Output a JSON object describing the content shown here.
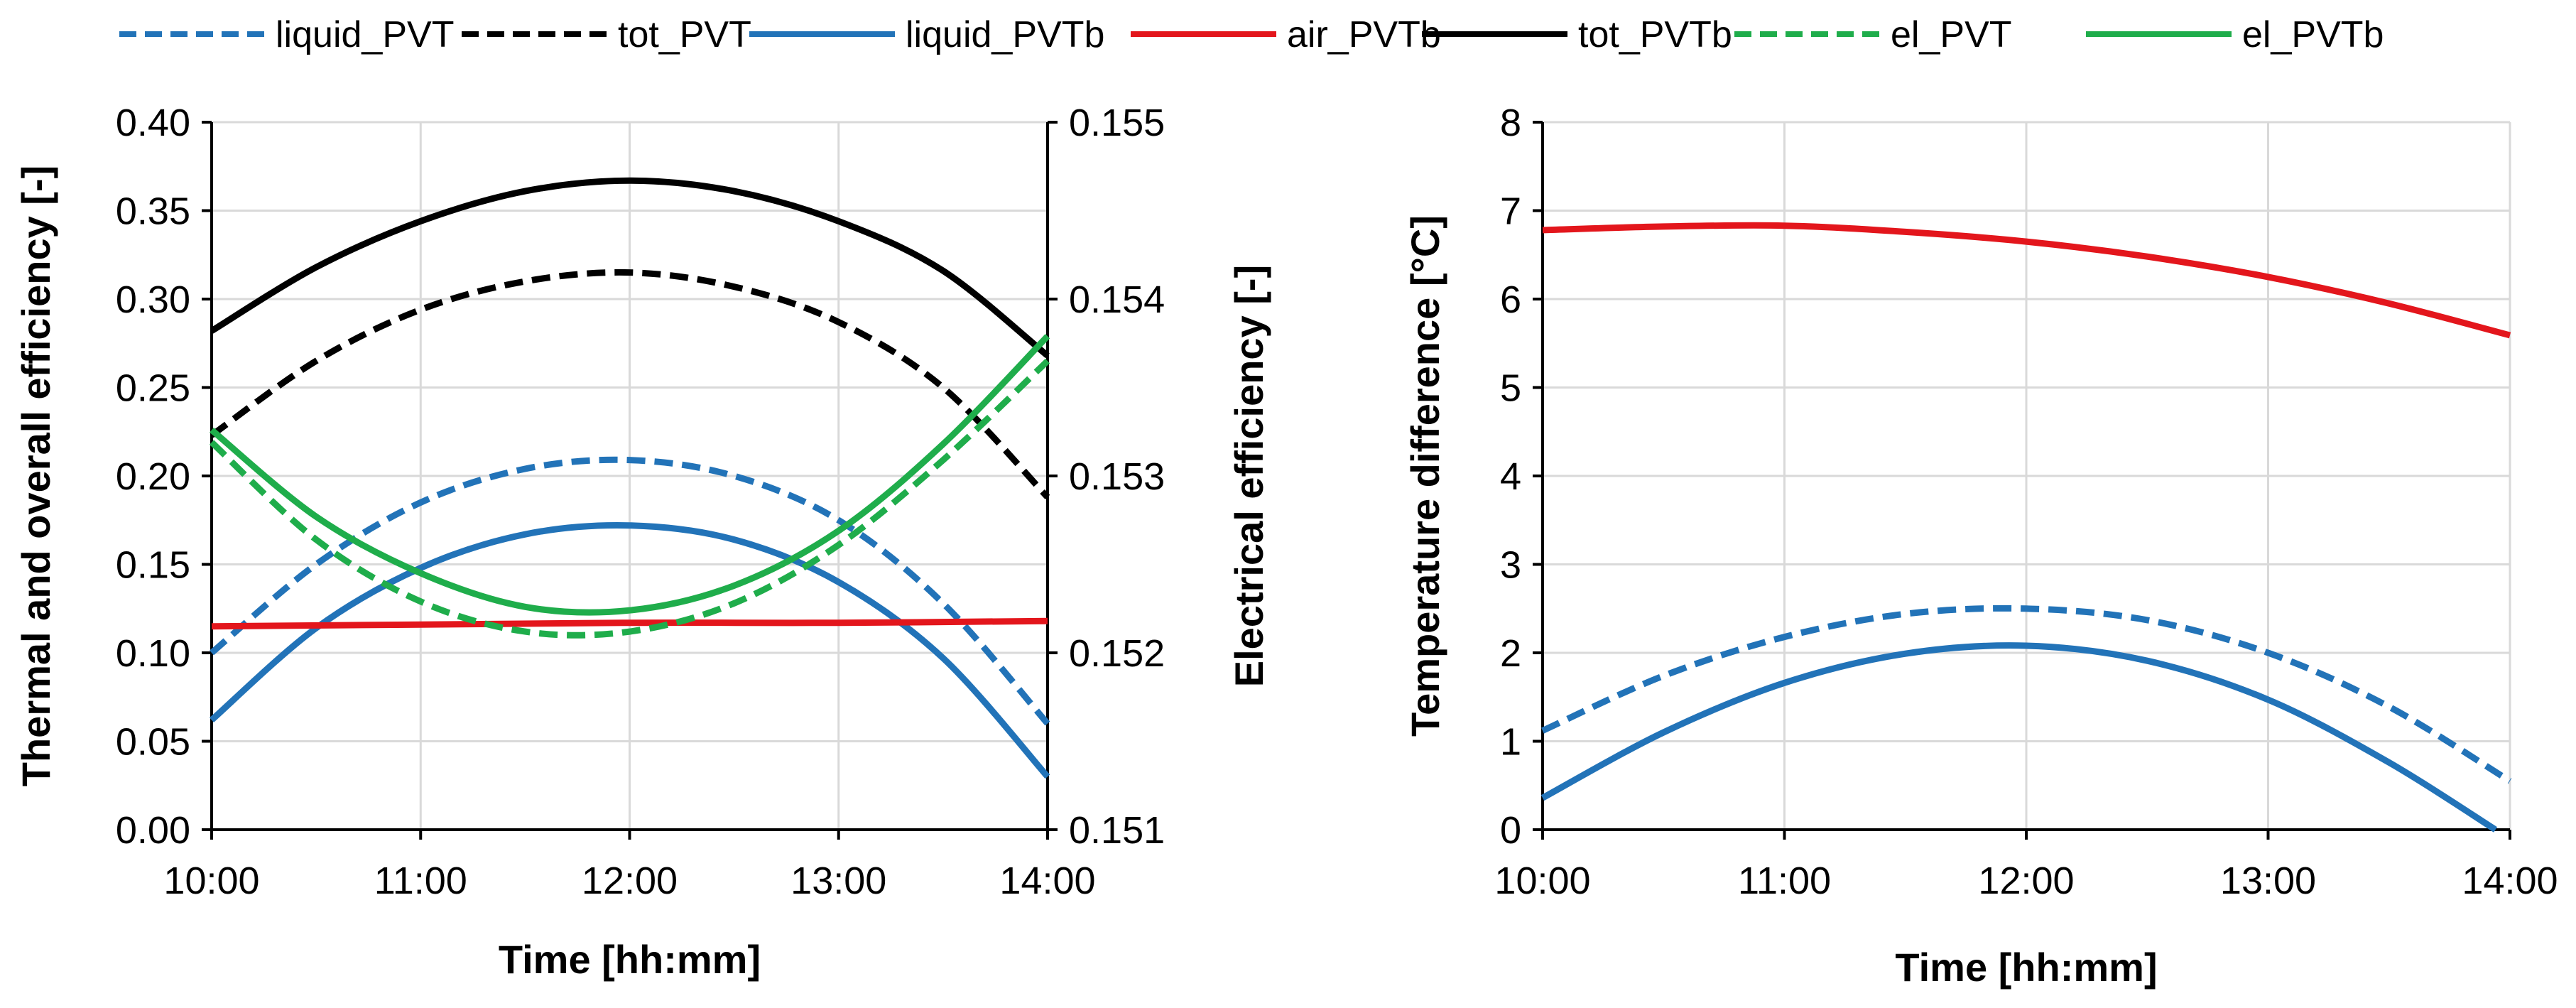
{
  "legend": [
    {
      "label": "liquid_PVT",
      "color": "#2273b8",
      "dash": true
    },
    {
      "label": "tot_PVT",
      "color": "#000000",
      "dash": true
    },
    {
      "label": "liquid_PVTb",
      "color": "#2273b8",
      "dash": false
    },
    {
      "label": "air_PVTb",
      "color": "#e3161c",
      "dash": false
    },
    {
      "label": "tot_PVTb",
      "color": "#000000",
      "dash": false
    },
    {
      "label": "el_PVT",
      "color": "#1fad4b",
      "dash": true
    },
    {
      "label": "el_PVTb",
      "color": "#1fad4b",
      "dash": false
    }
  ],
  "chart_data": [
    {
      "type": "line",
      "x_ticks": [
        "10:00",
        "11:00",
        "12:00",
        "13:00",
        "14:00"
      ],
      "x_range_hours": [
        10,
        14
      ],
      "xlabel": "Time   [hh:mm]",
      "ylabel_left": "Thermal and overall efficiency  [-]",
      "ylabel_right": "Electrical efficiency   [-]",
      "ylim_left": [
        0,
        0.4
      ],
      "yticks_left": [
        "0.00",
        "0.05",
        "0.10",
        "0.15",
        "0.20",
        "0.25",
        "0.30",
        "0.35",
        "0.40"
      ],
      "ylim_right": [
        0.151,
        0.155
      ],
      "yticks_right": [
        "0.151",
        "0.152",
        "0.153",
        "0.154",
        "0.155"
      ],
      "grid": true,
      "series": [
        {
          "name": "tot_PVTb",
          "axis": "left",
          "color": "#000000",
          "dash": false,
          "x": [
            10,
            10.5,
            11,
            11.5,
            12,
            12.5,
            13,
            13.5,
            14
          ],
          "y": [
            0.282,
            0.318,
            0.344,
            0.361,
            0.367,
            0.361,
            0.344,
            0.316,
            0.268
          ]
        },
        {
          "name": "tot_PVT",
          "axis": "left",
          "color": "#000000",
          "dash": true,
          "x": [
            10,
            10.5,
            11,
            11.5,
            12,
            12.5,
            13,
            13.5,
            14
          ],
          "y": [
            0.223,
            0.265,
            0.294,
            0.31,
            0.315,
            0.307,
            0.287,
            0.25,
            0.188
          ]
        },
        {
          "name": "liquid_PVT",
          "axis": "left",
          "color": "#2273b8",
          "dash": true,
          "x": [
            10,
            10.5,
            11,
            11.5,
            12,
            12.5,
            13,
            13.5,
            14
          ],
          "y": [
            0.1,
            0.15,
            0.185,
            0.204,
            0.209,
            0.2,
            0.175,
            0.128,
            0.06
          ]
        },
        {
          "name": "liquid_PVTb",
          "axis": "left",
          "color": "#2273b8",
          "dash": false,
          "x": [
            10,
            10.5,
            11,
            11.5,
            12,
            12.5,
            13,
            13.5,
            14
          ],
          "y": [
            0.062,
            0.114,
            0.148,
            0.167,
            0.172,
            0.164,
            0.14,
            0.097,
            0.03
          ]
        },
        {
          "name": "air_PVTb",
          "axis": "left",
          "color": "#e3161c",
          "dash": false,
          "x": [
            10,
            11,
            12,
            13,
            14
          ],
          "y": [
            0.115,
            0.116,
            0.117,
            0.117,
            0.118
          ]
        },
        {
          "name": "el_PVTb",
          "axis": "right",
          "color": "#1fad4b",
          "dash": false,
          "x": [
            10,
            10.5,
            11,
            11.5,
            12,
            12.5,
            13,
            13.5,
            14
          ],
          "y": [
            0.15326,
            0.15277,
            0.15245,
            0.15226,
            0.15224,
            0.15238,
            0.15269,
            0.15318,
            0.15379
          ]
        },
        {
          "name": "el_PVT",
          "axis": "right",
          "color": "#1fad4b",
          "dash": true,
          "x": [
            10,
            10.5,
            11,
            11.5,
            12,
            12.5,
            13,
            13.5,
            14
          ],
          "y": [
            0.15319,
            0.15264,
            0.15229,
            0.15212,
            0.15212,
            0.15228,
            0.15261,
            0.15309,
            0.15365
          ]
        }
      ]
    },
    {
      "type": "line",
      "x_ticks": [
        "10:00",
        "11:00",
        "12:00",
        "13:00",
        "14:00"
      ],
      "x_range_hours": [
        10,
        14
      ],
      "xlabel": "Time   [hh:mm]",
      "ylabel_left": "Temperature difference   [°C]",
      "ylim_left": [
        0,
        8
      ],
      "yticks_left": [
        "0",
        "1",
        "2",
        "3",
        "4",
        "5",
        "6",
        "7",
        "8"
      ],
      "grid": true,
      "series": [
        {
          "name": "air_PVTb",
          "axis": "left",
          "color": "#e3161c",
          "dash": false,
          "x": [
            10,
            10.5,
            11,
            11.5,
            12,
            12.5,
            13,
            13.5,
            14
          ],
          "y": [
            6.78,
            6.82,
            6.83,
            6.76,
            6.65,
            6.48,
            6.25,
            5.95,
            5.59
          ]
        },
        {
          "name": "liquid_PVT",
          "axis": "left",
          "color": "#2273b8",
          "dash": true,
          "x": [
            10,
            10.5,
            11,
            11.5,
            12,
            12.5,
            13,
            13.5,
            14
          ],
          "y": [
            1.12,
            1.74,
            2.18,
            2.44,
            2.5,
            2.37,
            2.0,
            1.39,
            0.55
          ]
        },
        {
          "name": "liquid_PVTb",
          "axis": "left",
          "color": "#2273b8",
          "dash": false,
          "x": [
            10,
            10.5,
            11,
            11.5,
            12,
            12.5,
            13,
            13.5,
            13.94
          ],
          "y": [
            0.36,
            1.1,
            1.66,
            1.99,
            2.08,
            1.91,
            1.47,
            0.76,
            0.0
          ]
        }
      ]
    }
  ]
}
